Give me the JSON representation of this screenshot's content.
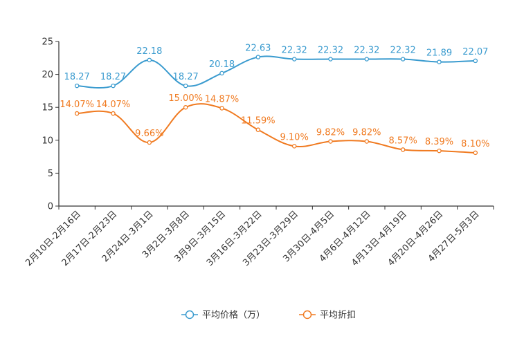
{
  "chart_data": {
    "type": "line",
    "title": "",
    "xlabel": "",
    "ylabel": "",
    "ylim": [
      0,
      25
    ],
    "yticks": [
      "0",
      "5",
      "10",
      "15",
      "20",
      "25"
    ],
    "ytick_values": [
      0,
      5,
      10,
      15,
      20,
      25
    ],
    "categories": [
      "2月10日-2月16日",
      "2月17日-2月23日",
      "2月24日-3月1日",
      "3月2日-3月8日",
      "3月9日-3月15日",
      "3月16日-3月22日",
      "3月23日-3月29日",
      "3月30日-4月5日",
      "4月6日-4月12日",
      "4月13日-4月19日",
      "4月20日-4月26日",
      "4月27日-5月3日"
    ],
    "grid": false,
    "legend_position": "bottom",
    "series": [
      {
        "name": "平均价格（万）",
        "color": "#3a9bcf",
        "values": [
          18.27,
          18.27,
          22.18,
          18.27,
          20.18,
          22.63,
          22.32,
          22.32,
          22.32,
          22.32,
          21.89,
          22.07
        ],
        "labels": [
          "18.27",
          "18.27",
          "22.18",
          "18.27",
          "20.18",
          "22.63",
          "22.32",
          "22.32",
          "22.32",
          "22.32",
          "21.89",
          "22.07"
        ]
      },
      {
        "name": "平均折扣",
        "color": "#f07a20",
        "values": [
          14.07,
          14.07,
          9.66,
          15.0,
          14.87,
          11.59,
          9.1,
          9.82,
          9.82,
          8.57,
          8.39,
          8.1
        ],
        "labels": [
          "14.07%",
          "14.07%",
          "9.66%",
          "15.00%",
          "14.87%",
          "11.59%",
          "9.10%",
          "9.82%",
          "9.82%",
          "8.57%",
          "8.39%",
          "8.10%"
        ]
      }
    ]
  }
}
